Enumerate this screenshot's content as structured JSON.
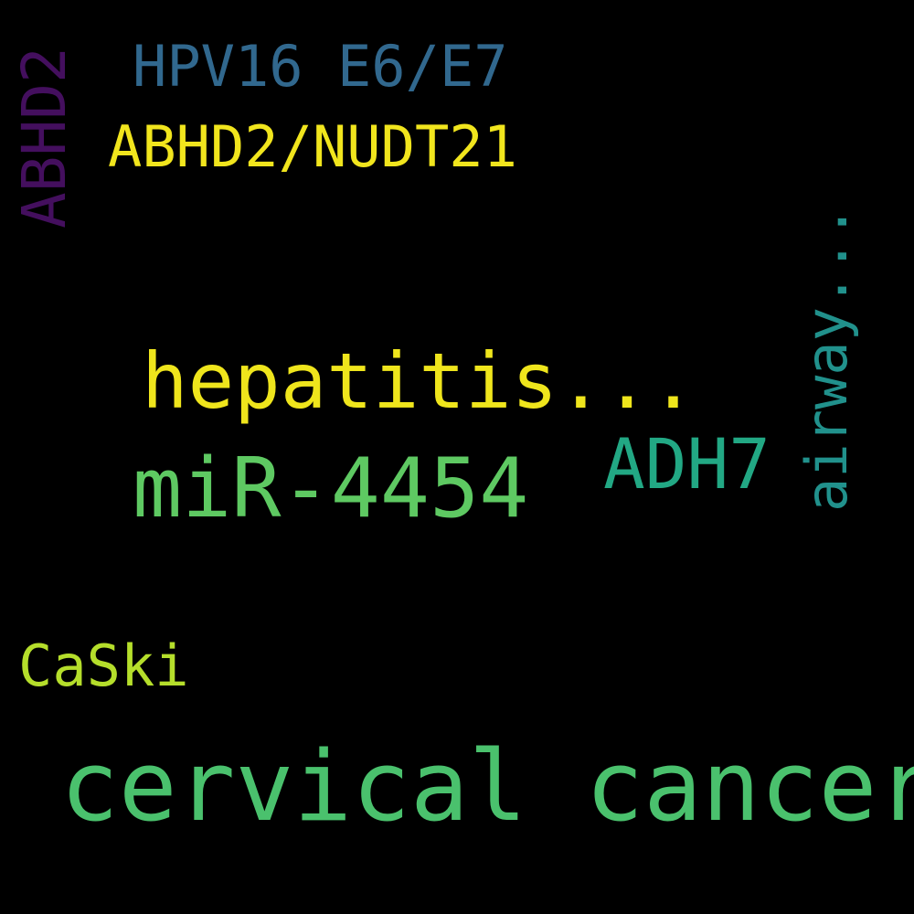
{
  "background": "#000000",
  "words": [
    {
      "text": "HPV16 E6/E7",
      "color": "#31688e",
      "orientation": "horizontal"
    },
    {
      "text": "ABHD2/NUDT21",
      "color": "#f1e51d",
      "orientation": "horizontal"
    },
    {
      "text": "ABHD2",
      "color": "#440f5e",
      "orientation": "vertical"
    },
    {
      "text": "hepatitis...",
      "color": "#efe51c",
      "orientation": "horizontal"
    },
    {
      "text": "miR-4454",
      "color": "#5ec962",
      "orientation": "horizontal"
    },
    {
      "text": "ADH7",
      "color": "#22a884",
      "orientation": "horizontal"
    },
    {
      "text": "airway...",
      "color": "#21918c",
      "orientation": "vertical"
    },
    {
      "text": "CaSki",
      "color": "#b5de2b",
      "orientation": "horizontal"
    },
    {
      "text": "cervical cancer",
      "color": "#4ac16d",
      "orientation": "horizontal"
    }
  ]
}
